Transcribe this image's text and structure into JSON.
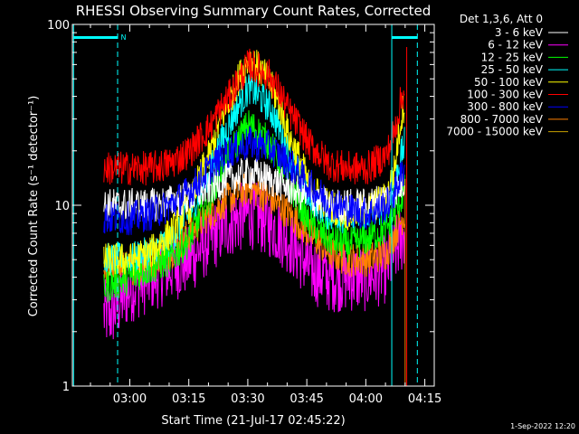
{
  "chart_data": {
    "type": "line",
    "title": "RHESSI Observing Summary Count Rates, Corrected",
    "xlabel": "Start Time (21-Jul-17 02:45:22)",
    "ylabel": "Corrected Count Rate (s⁻¹ detector⁻¹)",
    "yscale": "log",
    "ylim": [
      1,
      100
    ],
    "xlim_min_after_start": [
      0,
      92
    ],
    "x_ticks": [
      {
        "label": "03:00",
        "min": 14.6
      },
      {
        "label": "03:15",
        "min": 29.6
      },
      {
        "label": "03:30",
        "min": 44.6
      },
      {
        "label": "03:45",
        "min": 59.6
      },
      {
        "label": "04:00",
        "min": 74.6
      },
      {
        "label": "04:15",
        "min": 89.6
      }
    ],
    "y_ticks": [
      {
        "label": "1",
        "value": 1
      },
      {
        "label": "10",
        "value": 10
      },
      {
        "label": "100",
        "value": 100
      }
    ],
    "legend_title": "Det 1,3,6, Att 0",
    "legend_position": "top-right",
    "series": [
      {
        "name": "3 - 6 keV",
        "color": "#ffffff",
        "x": [
          8,
          15,
          20,
          25,
          30,
          35,
          40,
          45,
          50,
          55,
          60,
          65,
          70,
          75,
          80,
          82,
          84.5
        ],
        "values": [
          10,
          10,
          10,
          10.5,
          11,
          12.5,
          14,
          15,
          14,
          12.5,
          11,
          10,
          10,
          10,
          11,
          12,
          13.5
        ]
      },
      {
        "name": "6 - 12 keV",
        "color": "#ff00ff",
        "x": [
          8,
          10,
          15,
          20,
          25,
          30,
          35,
          40,
          45,
          50,
          55,
          60,
          65,
          70,
          75,
          80,
          82,
          84.5
        ],
        "values": [
          2.5,
          2.5,
          3.5,
          4,
          4.5,
          5,
          6.5,
          8,
          9,
          8,
          6.5,
          4.5,
          4,
          4,
          4,
          4.5,
          5.5,
          7
        ]
      },
      {
        "name": "12 - 25 keV",
        "color": "#00ff00",
        "x": [
          8,
          15,
          20,
          25,
          30,
          35,
          40,
          45,
          50,
          55,
          60,
          65,
          70,
          75,
          80,
          82,
          84.5
        ],
        "values": [
          3.5,
          4,
          4.5,
          5,
          6.5,
          11,
          19,
          28,
          22,
          13,
          8,
          6.5,
          6,
          6.5,
          7.5,
          9,
          12
        ]
      },
      {
        "name": "25 - 50 keV",
        "color": "#00ffff",
        "x": [
          8,
          15,
          20,
          25,
          30,
          35,
          40,
          45,
          50,
          55,
          60,
          65,
          70,
          75,
          80,
          82,
          84.5
        ],
        "values": [
          5,
          5,
          5.5,
          6.5,
          9,
          15,
          28,
          45,
          35,
          19,
          11,
          9,
          8.5,
          9,
          10,
          13,
          22
        ]
      },
      {
        "name": "50 - 100 keV",
        "color": "#ffff00",
        "x": [
          8,
          15,
          20,
          25,
          30,
          35,
          40,
          45,
          50,
          55,
          60,
          65,
          70,
          75,
          80,
          82,
          84.5
        ],
        "values": [
          5,
          5,
          5.5,
          7,
          10,
          19,
          38,
          65,
          48,
          24,
          13,
          10,
          9,
          9.5,
          11,
          16,
          38
        ]
      },
      {
        "name": "100 - 300 keV",
        "color": "#ff0000",
        "x": [
          8,
          15,
          20,
          25,
          30,
          35,
          40,
          45,
          50,
          55,
          60,
          65,
          70,
          75,
          80,
          82,
          84.5
        ],
        "values": [
          16,
          16,
          16,
          17,
          20,
          27,
          40,
          60,
          52,
          33,
          22,
          17,
          16,
          16,
          19,
          26,
          45
        ]
      },
      {
        "name": "300 - 800 keV",
        "color": "#0000ff",
        "x": [
          8,
          15,
          20,
          25,
          30,
          35,
          40,
          45,
          50,
          55,
          60,
          65,
          70,
          75,
          80,
          82,
          84.5
        ],
        "values": [
          8.5,
          8.5,
          9,
          10,
          12,
          16,
          20,
          22,
          21,
          17,
          13,
          10.5,
          9.5,
          9,
          10,
          12,
          16
        ]
      },
      {
        "name": "800 - 7000 keV",
        "color": "#ff8000",
        "x": [
          8,
          15,
          20,
          25,
          30,
          35,
          40,
          45,
          50,
          55,
          60,
          65,
          70,
          75,
          80,
          82,
          84.5
        ],
        "values": [
          4.5,
          4.5,
          4.8,
          5.5,
          7,
          9,
          11,
          12.5,
          11,
          9,
          7,
          5.5,
          5,
          5,
          5.5,
          7,
          9
        ]
      },
      {
        "name": "7000 - 15000 keV",
        "color": "#c8a000",
        "x": [],
        "values": []
      }
    ],
    "annotations": [
      {
        "text": "N",
        "color": "#00ffff",
        "at_min": 11.5
      },
      {
        "text": "1-Sep-2022 12:20",
        "color": "#ffffff"
      }
    ]
  }
}
